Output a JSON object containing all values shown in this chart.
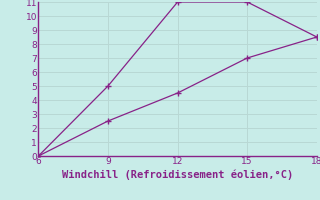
{
  "xlabel": "Windchill (Refroidissement éolien,°C)",
  "bg_color": "#c8ece8",
  "line_color": "#882288",
  "upper_x": [
    6,
    9,
    12,
    15,
    18
  ],
  "upper_y": [
    0,
    5,
    11,
    11,
    8.5
  ],
  "lower_x": [
    6,
    9,
    12,
    15,
    18
  ],
  "lower_y": [
    0,
    2.5,
    4.5,
    7.0,
    8.5
  ],
  "xlim": [
    6,
    18
  ],
  "ylim": [
    0,
    11
  ],
  "xticks": [
    6,
    9,
    12,
    15,
    18
  ],
  "yticks": [
    0,
    1,
    2,
    3,
    4,
    5,
    6,
    7,
    8,
    9,
    10,
    11
  ],
  "xlabel_fontsize": 7.5,
  "tick_fontsize": 6.5,
  "grid_color": "#b8d8d4",
  "spine_color": "#882288",
  "tick_color": "#882288"
}
